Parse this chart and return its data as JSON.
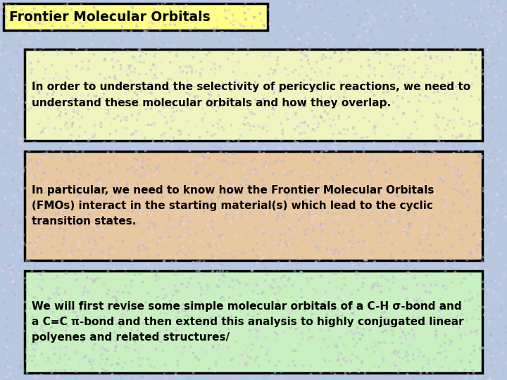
{
  "title": "Frontier Molecular Orbitals",
  "title_bg": "#ffff88",
  "title_border": "#000000",
  "bg_color": "#b8c8e0",
  "box1_text": "In order to understand the selectivity of pericyclic reactions, we need to\nunderstand these molecular orbitals and how they overlap.",
  "box1_bg": "#f0f5c0",
  "box1_border": "#000000",
  "box2_text": "In particular, we need to know how the Frontier Molecular Orbitals\n(FMOs) interact in the starting material(s) which lead to the cyclic\ntransition states.",
  "box2_bg": "#e8c8a0",
  "box2_border": "#000000",
  "box3_text": "We will first revise some simple molecular orbitals of a C-H σ-bond and\na C=C π-bond and then extend this analysis to highly conjugated linear\npolyenes and related structures/",
  "box3_bg": "#c8f0c0",
  "box3_border": "#000000",
  "font_size": 11.0,
  "title_font_size": 13.5,
  "font_color": "#000000",
  "font_weight": "bold",
  "noise_colors": [
    "#c8b0d8",
    "#d0c8e8",
    "#e8d8f0",
    "#b0c0d8",
    "#d8b8c8",
    "#f0d8e8",
    "#a8b8d0",
    "#c0a8c8"
  ]
}
